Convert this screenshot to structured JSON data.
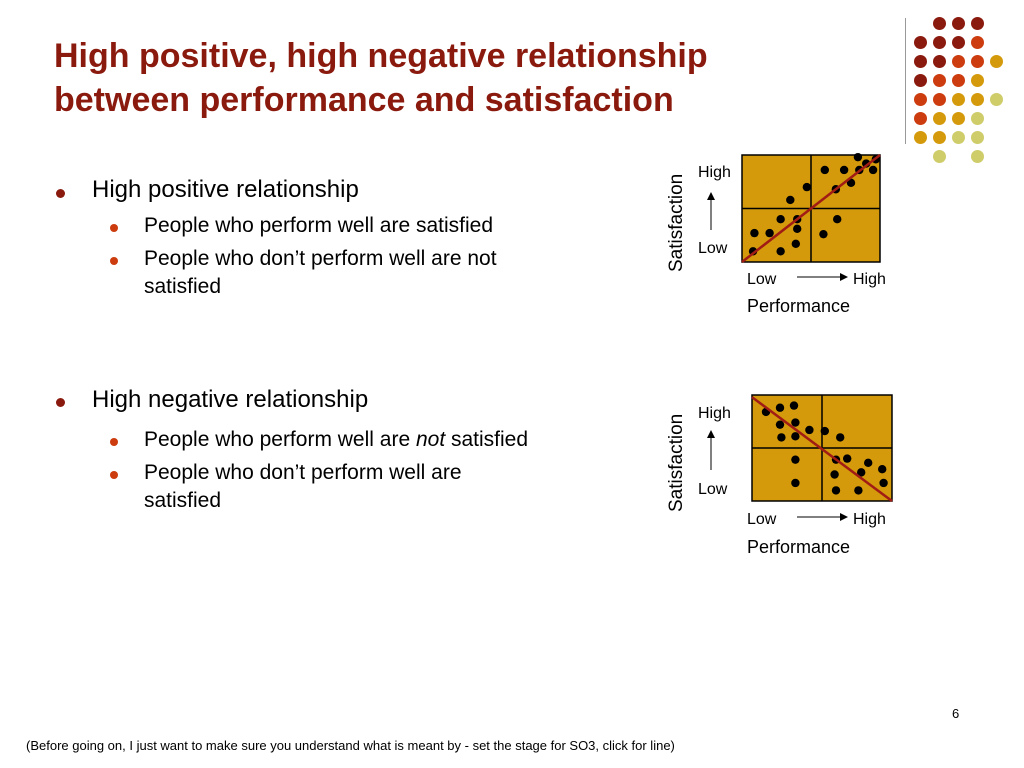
{
  "slide": {
    "title_line1": "High positive, high negative relationship",
    "title_line2": "between performance and satisfaction",
    "page_number": "6",
    "footnote": "(Before going on, I just want to make sure you understand what is meant by - set the stage for SO3, click for line)"
  },
  "colors": {
    "title": "#8b1a0e",
    "dark_red": "#8b1a0e",
    "orange": "#cc3c0e",
    "gold": "#d49a0c",
    "khaki": "#cfcc6a",
    "chart_fill": "#d49a0c",
    "trend_line": "#a01c14"
  },
  "bullets": {
    "positive": {
      "heading": "High positive relationship",
      "items": [
        "People who perform well are satisfied",
        "People who don’t perform well are not",
        "satisfied"
      ]
    },
    "negative": {
      "heading": "High negative relationship",
      "item1_before": "People who perform well are ",
      "item1_emph": "not",
      "item1_after": " satisfied",
      "item2_line1": "People who don’t perform well are",
      "item2_line2": "satisfied"
    }
  },
  "chart_data": [
    {
      "type": "scatter",
      "trend": "positive",
      "xlabel": "Performance",
      "ylabel": "Satisfaction",
      "x_tick_labels": [
        "Low",
        "High"
      ],
      "y_tick_labels": [
        "Low",
        "High"
      ],
      "xlim": [
        0,
        1
      ],
      "ylim": [
        0,
        1
      ],
      "points": [
        [
          0.08,
          0.1
        ],
        [
          0.09,
          0.27
        ],
        [
          0.2,
          0.27
        ],
        [
          0.28,
          0.1
        ],
        [
          0.28,
          0.4
        ],
        [
          0.39,
          0.17
        ],
        [
          0.4,
          0.4
        ],
        [
          0.4,
          0.31
        ],
        [
          0.35,
          0.58
        ],
        [
          0.47,
          0.7
        ],
        [
          0.6,
          0.86
        ],
        [
          0.59,
          0.26
        ],
        [
          0.68,
          0.68
        ],
        [
          0.69,
          0.4
        ],
        [
          0.74,
          0.86
        ],
        [
          0.79,
          0.74
        ],
        [
          0.85,
          0.86
        ],
        [
          0.9,
          0.92
        ],
        [
          0.95,
          0.86
        ],
        [
          0.97,
          0.96
        ],
        [
          0.84,
          0.98
        ]
      ],
      "line": [
        [
          0.0,
          0.0
        ],
        [
          1.0,
          1.0
        ]
      ]
    },
    {
      "type": "scatter",
      "trend": "negative",
      "xlabel": "Performance",
      "ylabel": "Satisfaction",
      "x_tick_labels": [
        "Low",
        "High"
      ],
      "y_tick_labels": [
        "Low",
        "High"
      ],
      "xlim": [
        0,
        1
      ],
      "ylim": [
        0,
        1
      ],
      "points": [
        [
          0.1,
          0.84
        ],
        [
          0.2,
          0.88
        ],
        [
          0.3,
          0.9
        ],
        [
          0.2,
          0.72
        ],
        [
          0.31,
          0.74
        ],
        [
          0.21,
          0.6
        ],
        [
          0.31,
          0.61
        ],
        [
          0.41,
          0.67
        ],
        [
          0.52,
          0.66
        ],
        [
          0.63,
          0.6
        ],
        [
          0.68,
          0.4
        ],
        [
          0.83,
          0.36
        ],
        [
          0.31,
          0.39
        ],
        [
          0.31,
          0.17
        ],
        [
          0.6,
          0.39
        ],
        [
          0.78,
          0.27
        ],
        [
          0.93,
          0.3
        ],
        [
          0.59,
          0.25
        ],
        [
          0.6,
          0.1
        ],
        [
          0.76,
          0.1
        ],
        [
          0.94,
          0.17
        ]
      ],
      "line": [
        [
          0.0,
          0.98
        ],
        [
          1.0,
          0.0
        ]
      ]
    }
  ]
}
